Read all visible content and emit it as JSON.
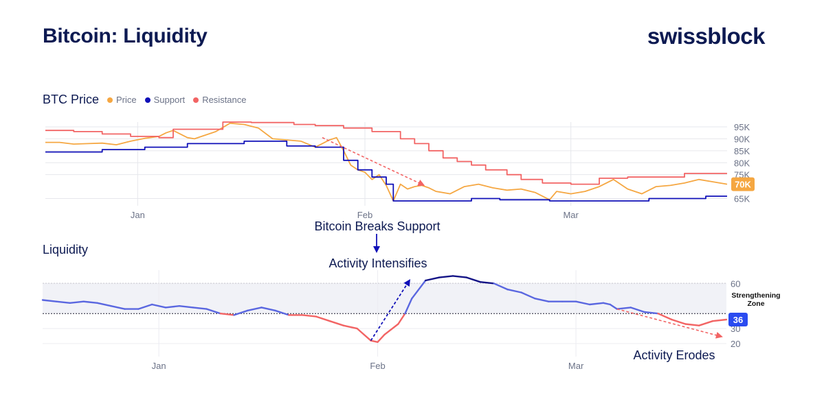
{
  "header": {
    "title": "Bitcoin: Liquidity",
    "brand": "swissblock"
  },
  "legend": {
    "title": "BTC Price",
    "items": [
      {
        "label": "Price",
        "color": "#f5a742"
      },
      {
        "label": "Support",
        "color": "#1010b8"
      },
      {
        "label": "Resistance",
        "color": "#f26464"
      }
    ]
  },
  "liquidity_title": "Liquidity",
  "annotations": {
    "breaks_support": "Bitcoin Breaks Support",
    "intensifies": "Activity Intensifies",
    "erodes": "Activity Erodes",
    "zone_line1": "Strengthening",
    "zone_line2": "Zone"
  },
  "badges": {
    "price": "70K",
    "liquidity": "36"
  },
  "chart_data": [
    {
      "type": "line",
      "title": "BTC Price",
      "x_ticks": [
        "Jan",
        "Feb",
        "Mar"
      ],
      "y_ticks": [
        "95K",
        "90K",
        "85K",
        "80K",
        "75K",
        "65K"
      ],
      "y_tick_values": [
        95,
        90,
        85,
        80,
        75,
        65
      ],
      "ylim": [
        62,
        97
      ],
      "x_tick_days": [
        23,
        55,
        84
      ],
      "grid": true,
      "last_value_label": "70K",
      "series": [
        {
          "name": "Price",
          "color": "#f5a742",
          "x": [
            10,
            12,
            14,
            16,
            18,
            20,
            22,
            24,
            26,
            27,
            28,
            29,
            30,
            31,
            32,
            33,
            34,
            36,
            38,
            40,
            42,
            44,
            46,
            48,
            49,
            50,
            51,
            52,
            53,
            54,
            55,
            56,
            57,
            58,
            59,
            60,
            61,
            62,
            63,
            64,
            65,
            67,
            69,
            71,
            73,
            75,
            77,
            79,
            81,
            82,
            84,
            86,
            88,
            90,
            92,
            94,
            96,
            98,
            100,
            102,
            104,
            106
          ],
          "y": [
            88.5,
            88.5,
            87.8,
            88,
            88.2,
            87.5,
            89,
            90.2,
            91,
            92.5,
            93.5,
            92,
            90.5,
            90,
            91,
            92,
            93,
            96.5,
            96,
            94.5,
            90,
            89.5,
            89,
            86.5,
            88,
            89.5,
            90.5,
            85,
            79,
            77,
            76,
            73,
            75,
            70.5,
            64,
            71,
            69,
            70,
            70.5,
            69.5,
            68,
            67,
            70,
            71,
            69.5,
            68.5,
            69,
            67.5,
            64.5,
            68,
            67,
            68,
            70,
            73,
            69,
            67,
            70,
            70.5,
            71.5,
            73,
            72,
            71
          ]
        },
        {
          "name": "Support",
          "color": "#1010b8",
          "x": [
            10,
            18,
            18,
            24,
            24,
            30,
            30,
            38,
            38,
            44,
            44,
            48,
            48,
            52,
            52,
            54,
            54,
            56,
            56,
            58,
            58,
            59,
            59,
            70,
            70,
            74,
            74,
            81,
            81,
            95,
            95,
            103,
            103,
            106
          ],
          "y": [
            84.5,
            84.5,
            85.5,
            85.5,
            86.5,
            86.5,
            88,
            88,
            89,
            89,
            87,
            87,
            86.5,
            86.5,
            81,
            81,
            77,
            77,
            74,
            74,
            71,
            71,
            64,
            64,
            65,
            65,
            64.5,
            64.5,
            64,
            64,
            65,
            65,
            66,
            66
          ]
        },
        {
          "name": "Resistance",
          "color": "#f26464",
          "x": [
            10,
            14,
            14,
            18,
            18,
            22,
            22,
            26,
            26,
            28,
            28,
            35,
            35,
            39,
            39,
            45,
            45,
            48,
            48,
            52,
            52,
            56,
            56,
            60,
            60,
            62,
            62,
            64,
            64,
            66,
            66,
            68,
            68,
            70,
            70,
            72,
            72,
            75,
            75,
            77,
            77,
            80,
            80,
            84,
            84,
            88,
            88,
            92,
            92,
            100,
            100,
            106
          ],
          "y": [
            93.5,
            93.5,
            93,
            93,
            92,
            92,
            91,
            91,
            90.5,
            90.5,
            94,
            94,
            97,
            97,
            96.8,
            96.8,
            96,
            96,
            95.5,
            95.5,
            94.5,
            94.5,
            93,
            93,
            90,
            90,
            88,
            88,
            85,
            85,
            82,
            82,
            80.5,
            80.5,
            79,
            79,
            77,
            77,
            75,
            75,
            73,
            73,
            71.5,
            71.5,
            71,
            71,
            73.5,
            73.5,
            74,
            74,
            75.5,
            75.5
          ]
        }
      ]
    },
    {
      "type": "line",
      "title": "Liquidity",
      "x_ticks": [
        "Jan",
        "Feb",
        "Mar"
      ],
      "y_ticks": [
        "60",
        "30",
        "20"
      ],
      "y_tick_values": [
        60,
        30,
        20
      ],
      "ylim": [
        15,
        67
      ],
      "x_tick_days": [
        23,
        55,
        84
      ],
      "zone": [
        40,
        60
      ],
      "last_value_label": "36",
      "series": [
        {
          "name": "Liquidity",
          "x": [
            6,
            8,
            10,
            12,
            14,
            16,
            18,
            20,
            22,
            24,
            26,
            28,
            30,
            32,
            34,
            36,
            38,
            40,
            42,
            44,
            46,
            48,
            50,
            52,
            53,
            54,
            55,
            56,
            58,
            59,
            60,
            62,
            64,
            66,
            68,
            70,
            72,
            74,
            76,
            78,
            80,
            82,
            84,
            86,
            88,
            89,
            90,
            92,
            94,
            96,
            98,
            100,
            102,
            104,
            106
          ],
          "y": [
            49,
            48,
            47,
            48,
            47,
            45,
            43,
            43,
            46,
            44,
            45,
            44,
            43,
            40,
            39,
            42,
            44,
            42,
            39,
            39,
            38,
            35,
            32,
            30,
            26,
            22,
            21,
            26,
            33,
            40,
            50,
            62,
            64,
            65,
            64,
            61,
            60,
            56,
            54,
            50,
            48,
            48,
            48,
            46,
            47,
            46,
            43,
            44,
            41,
            40,
            36,
            33,
            32,
            35,
            36
          ]
        }
      ]
    }
  ]
}
